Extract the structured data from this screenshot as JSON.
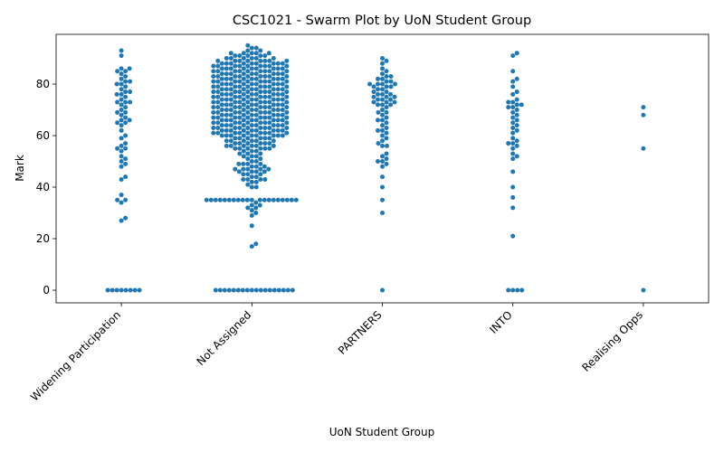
{
  "chart_data": {
    "type": "swarm",
    "title": "CSC1021 - Swarm Plot by UoN Student Group",
    "xlabel": "UoN Student Group",
    "ylabel": "Mark",
    "color": "#1f77b4",
    "categories": [
      "Widening Participation",
      "Not Assigned",
      "PARTNERS",
      "INTO",
      "Realising Opps"
    ],
    "values": [
      [
        93,
        91,
        86,
        86,
        85,
        85,
        84,
        83,
        82,
        81,
        81,
        80,
        80,
        79,
        78,
        77,
        77,
        76,
        76,
        75,
        74,
        73,
        73,
        73,
        72,
        71,
        70,
        69,
        69,
        68,
        67,
        66,
        66,
        65,
        65,
        64,
        62,
        60,
        59,
        57,
        56,
        55,
        55,
        54,
        52,
        51,
        50,
        49,
        48,
        44,
        43,
        37,
        35,
        35,
        34,
        28,
        27,
        0,
        0,
        0,
        0,
        0,
        0,
        0,
        0
      ],
      [
        95,
        94,
        94,
        93,
        93,
        92,
        92,
        92,
        92,
        92,
        91,
        91,
        91,
        91,
        91,
        90,
        90,
        90,
        90,
        90,
        90,
        89,
        89,
        89,
        89,
        89,
        89,
        89,
        89,
        88,
        88,
        88,
        88,
        88,
        88,
        88,
        88,
        88,
        87,
        87,
        87,
        87,
        87,
        87,
        87,
        87,
        87,
        86,
        86,
        86,
        86,
        86,
        86,
        86,
        86,
        86,
        85,
        85,
        85,
        85,
        85,
        85,
        85,
        85,
        85,
        84,
        84,
        84,
        84,
        84,
        84,
        84,
        84,
        84,
        83,
        83,
        83,
        83,
        83,
        83,
        83,
        83,
        83,
        82,
        82,
        82,
        82,
        82,
        82,
        82,
        82,
        82,
        81,
        81,
        81,
        81,
        81,
        81,
        81,
        81,
        81,
        80,
        80,
        80,
        80,
        80,
        80,
        80,
        80,
        80,
        79,
        79,
        79,
        79,
        79,
        79,
        79,
        79,
        79,
        78,
        78,
        78,
        78,
        78,
        78,
        78,
        78,
        78,
        77,
        77,
        77,
        77,
        77,
        77,
        77,
        77,
        77,
        76,
        76,
        76,
        76,
        76,
        76,
        76,
        76,
        76,
        75,
        75,
        75,
        75,
        75,
        75,
        75,
        75,
        75,
        74,
        74,
        74,
        74,
        74,
        74,
        74,
        74,
        74,
        73,
        73,
        73,
        73,
        73,
        73,
        73,
        73,
        73,
        72,
        72,
        72,
        72,
        72,
        72,
        72,
        72,
        72,
        71,
        71,
        71,
        71,
        71,
        71,
        71,
        71,
        71,
        70,
        70,
        70,
        70,
        70,
        70,
        70,
        70,
        70,
        69,
        69,
        69,
        69,
        69,
        69,
        69,
        69,
        69,
        68,
        68,
        68,
        68,
        68,
        68,
        68,
        68,
        68,
        67,
        67,
        67,
        67,
        67,
        67,
        67,
        67,
        67,
        66,
        66,
        66,
        66,
        66,
        66,
        66,
        66,
        66,
        65,
        65,
        65,
        65,
        65,
        65,
        65,
        65,
        65,
        64,
        64,
        64,
        64,
        64,
        64,
        64,
        64,
        64,
        63,
        63,
        63,
        63,
        63,
        63,
        63,
        63,
        63,
        62,
        62,
        62,
        62,
        62,
        62,
        62,
        62,
        62,
        61,
        61,
        61,
        61,
        61,
        61,
        61,
        61,
        61,
        60,
        60,
        60,
        60,
        60,
        60,
        60,
        60,
        60,
        59,
        59,
        59,
        59,
        59,
        59,
        58,
        58,
        58,
        58,
        58,
        58,
        57,
        57,
        57,
        57,
        57,
        57,
        56,
        56,
        56,
        56,
        56,
        56,
        55,
        55,
        55,
        55,
        55,
        55,
        54,
        54,
        54,
        53,
        53,
        53,
        52,
        52,
        52,
        51,
        51,
        50,
        50,
        49,
        49,
        49,
        49,
        48,
        48,
        48,
        47,
        47,
        47,
        47,
        47,
        46,
        46,
        46,
        46,
        45,
        45,
        45,
        44,
        44,
        43,
        43,
        43,
        43,
        42,
        42,
        41,
        40,
        40,
        35,
        35,
        35,
        35,
        35,
        35,
        35,
        35,
        35,
        35,
        35,
        35,
        35,
        35,
        35,
        35,
        35,
        35,
        35,
        35,
        34,
        33,
        33,
        32,
        32,
        31,
        30,
        29,
        25,
        18,
        17,
        0,
        0,
        0,
        0,
        0,
        0,
        0,
        0,
        0,
        0,
        0,
        0,
        0,
        0,
        0,
        0,
        0,
        0
      ],
      [
        90,
        89,
        88,
        86,
        85,
        84,
        83,
        83,
        82,
        82,
        81,
        81,
        80,
        80,
        80,
        80,
        79,
        79,
        79,
        78,
        78,
        77,
        77,
        76,
        76,
        76,
        75,
        75,
        75,
        74,
        74,
        74,
        73,
        73,
        73,
        72,
        72,
        72,
        71,
        70,
        69,
        69,
        68,
        67,
        66,
        66,
        65,
        64,
        63,
        62,
        62,
        61,
        60,
        59,
        58,
        57,
        56,
        56,
        53,
        52,
        51,
        50,
        50,
        49,
        48,
        44,
        40,
        35,
        30,
        0
      ],
      [
        92,
        91,
        85,
        82,
        81,
        79,
        77,
        76,
        74,
        73,
        73,
        72,
        72,
        71,
        71,
        70,
        69,
        68,
        67,
        66,
        65,
        64,
        63,
        62,
        61,
        59,
        58,
        57,
        57,
        56,
        55,
        53,
        52,
        51,
        46,
        40,
        36,
        32,
        21,
        0,
        0,
        0,
        0
      ],
      [
        71,
        68,
        55,
        0
      ]
    ],
    "ylim": [
      -4.9,
      99.3
    ],
    "yticks": [
      0,
      20,
      40,
      60,
      80
    ]
  }
}
